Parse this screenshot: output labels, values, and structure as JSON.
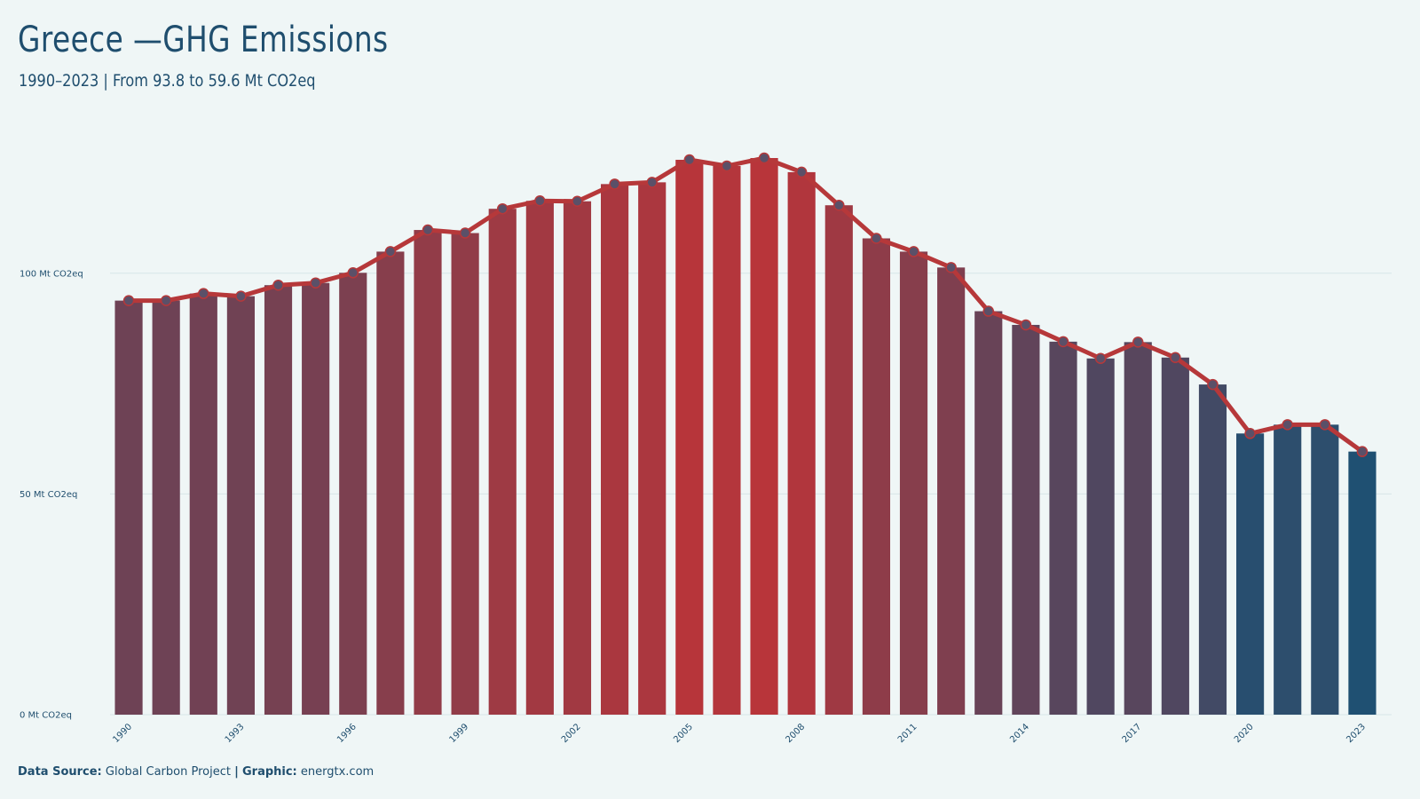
{
  "title": "Greece —GHG Emissions",
  "subtitle": "1990–2023 | From 93.8 to 59.6 Mt CO2eq",
  "footer": {
    "source_label": "Data Source:",
    "source_value": "Global Carbon Project",
    "separator": "|",
    "graphic_label": "Graphic:",
    "graphic_value": "energtx.com"
  },
  "colors": {
    "background": "#eff6f6",
    "line": "#b6383a",
    "bar_high": "#b8353a",
    "bar_low": "#1f5072",
    "marker": "#5b5068",
    "grid": "#d7e6e8"
  },
  "chart_data": {
    "type": "bar",
    "categories": [
      "1990",
      "1991",
      "1992",
      "1993",
      "1994",
      "1995",
      "1996",
      "1997",
      "1998",
      "1999",
      "2000",
      "2001",
      "2002",
      "2003",
      "2004",
      "2005",
      "2006",
      "2007",
      "2008",
      "2009",
      "2010",
      "2011",
      "2012",
      "2013",
      "2014",
      "2015",
      "2016",
      "2017",
      "2018",
      "2019",
      "2020",
      "2021",
      "2022",
      "2023"
    ],
    "values": [
      93.8,
      93.8,
      95.4,
      94.8,
      97.3,
      97.8,
      100.1,
      104.9,
      109.8,
      109.1,
      114.6,
      116.4,
      116.3,
      120.2,
      120.6,
      125.7,
      124.3,
      126.1,
      122.9,
      115.4,
      107.9,
      104.9,
      101.3,
      91.4,
      88.3,
      84.5,
      80.7,
      84.4,
      80.9,
      74.8,
      63.7,
      65.7,
      65.7,
      59.6
    ],
    "ylim": [
      0,
      125.7
    ],
    "yticks": [
      {
        "value": 0,
        "label": "0 Mt CO2eq"
      },
      {
        "value": 50,
        "label": "50 Mt CO2eq"
      },
      {
        "value": 100,
        "label": "100 Mt CO2eq"
      }
    ],
    "xtick_labels": [
      "1990",
      "1993",
      "1996",
      "1999",
      "2002",
      "2005",
      "2008",
      "2011",
      "2014",
      "2017",
      "2020",
      "2023"
    ],
    "overlay": "line-with-markers",
    "grid": true,
    "legend": "none"
  }
}
